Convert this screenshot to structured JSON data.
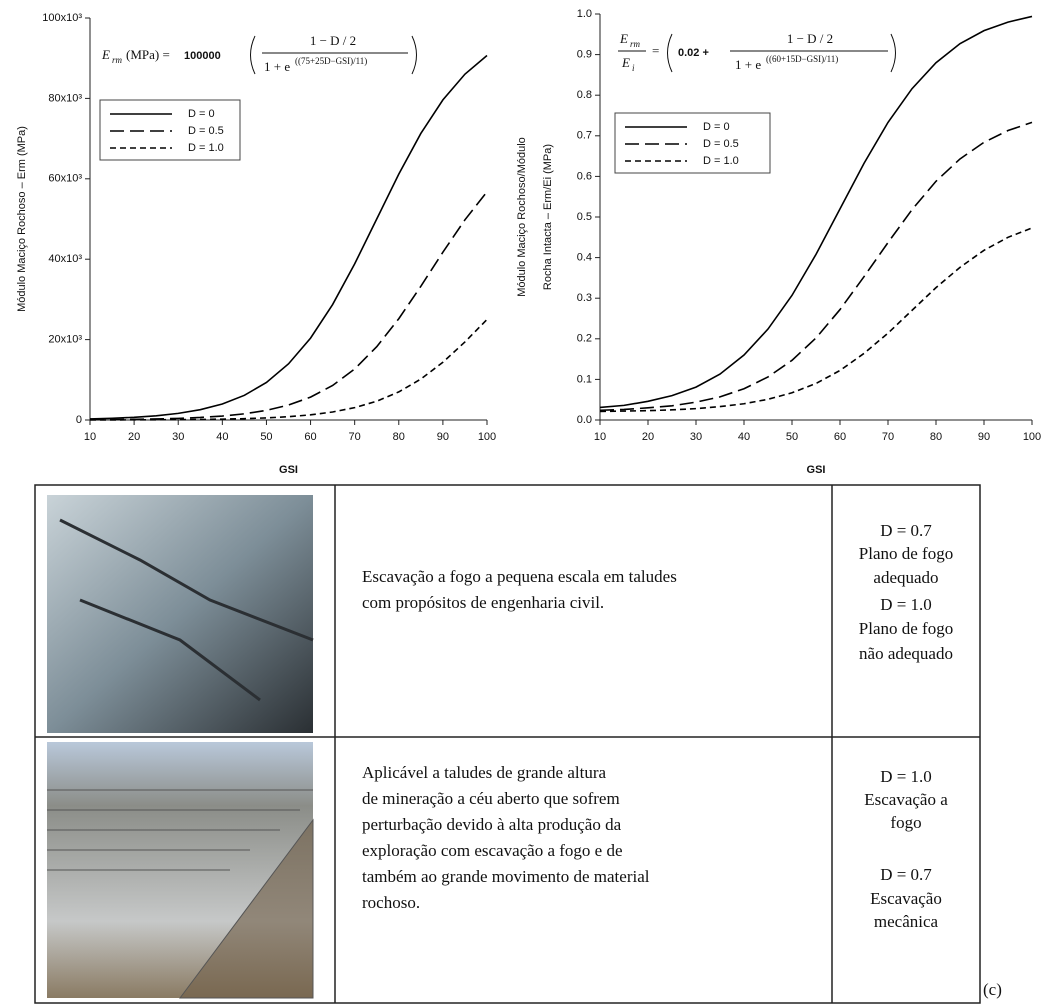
{
  "chart_data": [
    {
      "type": "line",
      "ylabel": [
        "Módulo Maciço Rochoso – Erm (MPa)"
      ],
      "xlabel": "GSI",
      "formula": {
        "lhs": "E",
        "lhs_sub": "rm",
        "lhs_rest": "(MPa) =",
        "coef": "100000",
        "numerator": "1 − D / 2",
        "denominator": "1 + e",
        "exponent": "((75+25D−GSI)/11)"
      },
      "x": [
        10,
        15,
        20,
        25,
        30,
        35,
        40,
        45,
        50,
        55,
        60,
        65,
        70,
        75,
        80,
        85,
        90,
        95,
        100
      ],
      "series": [
        {
          "name": "D = 0",
          "color": "#000000",
          "style": "solid",
          "values": [
            271,
            426,
            669,
            1050,
            1645,
            2566,
            3986,
            6140,
            9340,
            13970,
            20370,
            28720,
            38830,
            50000,
            61170,
            71280,
            79630,
            86030,
            90660
          ]
        },
        {
          "name": "D = 0.5",
          "color": "#000000",
          "style": "long-dash",
          "values": [
            65,
            103,
            162,
            255,
            401,
            629,
            987,
            1541,
            2401,
            3713,
            5690,
            8590,
            12690,
            18230,
            25190,
            33260,
            41740,
            49800,
            56770
          ]
        },
        {
          "name": "D = 1.0",
          "color": "#000000",
          "style": "dash",
          "values": [
            14,
            22,
            35,
            55,
            86,
            135,
            213,
            335,
            525,
            822,
            1283,
            1993,
            3070,
            4670,
            6985,
            10180,
            14360,
            19420,
            25000
          ]
        }
      ],
      "xlim": [
        10,
        100
      ],
      "xticks": [
        10,
        20,
        30,
        40,
        50,
        60,
        70,
        80,
        90,
        100
      ],
      "ylim": [
        0,
        100000
      ],
      "yticks": [
        0,
        {
          "value": 20000,
          "label": "20x10³"
        },
        {
          "value": 40000,
          "label": "40x10³"
        },
        {
          "value": 60000,
          "label": "60x10³"
        },
        {
          "value": 80000,
          "label": "80x10³"
        },
        {
          "value": 100000,
          "label": "100x10³"
        }
      ],
      "grid": false,
      "legend": "upper left"
    },
    {
      "type": "line",
      "ylabel": [
        "Módulo Maciço Rochoso/Módulo",
        "Rocha Intacta – Erm/Ei (MPa)"
      ],
      "xlabel": "GSI",
      "formula": {
        "lhs": "E",
        "lhs_sub": "rm",
        "den_lhs": "E",
        "den_sub": "i",
        "eq": "=",
        "const": "0.02 +",
        "numerator": "1 − D / 2",
        "denominator": "1 + e",
        "exponent": "((60+15D−GSI)/11)"
      },
      "x": [
        10,
        15,
        20,
        25,
        30,
        35,
        40,
        45,
        50,
        55,
        60,
        65,
        70,
        75,
        80,
        85,
        90,
        95,
        100
      ],
      "series": [
        {
          "name": "D = 0",
          "color": "#000000",
          "style": "solid",
          "values": [
            0.031,
            0.036,
            0.046,
            0.06,
            0.081,
            0.113,
            0.16,
            0.224,
            0.307,
            0.408,
            0.52,
            0.632,
            0.733,
            0.816,
            0.88,
            0.927,
            0.959,
            0.98,
            0.994
          ]
        },
        {
          "name": "D = 0.5",
          "color": "#000000",
          "style": "long-dash",
          "values": [
            0.024,
            0.026,
            0.03,
            0.035,
            0.044,
            0.057,
            0.077,
            0.106,
            0.147,
            0.202,
            0.272,
            0.353,
            0.437,
            0.518,
            0.588,
            0.643,
            0.684,
            0.713,
            0.733
          ]
        },
        {
          "name": "D = 1.0",
          "color": "#000000",
          "style": "dash",
          "values": [
            0.021,
            0.022,
            0.023,
            0.025,
            0.028,
            0.033,
            0.04,
            0.051,
            0.067,
            0.09,
            0.122,
            0.164,
            0.214,
            0.27,
            0.326,
            0.376,
            0.418,
            0.45,
            0.473
          ]
        }
      ],
      "xlim": [
        10,
        100
      ],
      "xticks": [
        10,
        20,
        30,
        40,
        50,
        60,
        70,
        80,
        90,
        100
      ],
      "ylim": [
        0,
        1
      ],
      "yticks": [
        {
          "value": 0,
          "label": "0.0"
        },
        0.1,
        0.2,
        0.3,
        0.4,
        0.5,
        0.6,
        0.7,
        0.8,
        0.9,
        {
          "value": 1,
          "label": "1.0"
        }
      ],
      "grid": false,
      "legend": "upper left"
    }
  ],
  "table": {
    "rows": [
      {
        "description": [
          "Escavação a fogo a pequena escala em taludes",
          "com propósitos de engenharia civil."
        ],
        "d_notes": [
          "D = 0.7",
          "Plano de fogo",
          "adequado",
          "D = 1.0",
          "Plano de fogo",
          "não adequado"
        ]
      },
      {
        "description": [
          "Aplicável a taludes de grande altura",
          "de mineração a céu aberto que sofrem",
          "perturbação devido à alta produção da",
          "exploração com escavação a fogo e de",
          "também ao grande movimento de material",
          "rochoso."
        ],
        "d_notes": [
          "D = 1.0",
          "Escavação a",
          "fogo",
          "D = 0.7",
          "Escavação",
          "mecânica"
        ]
      }
    ]
  },
  "label": "(c)"
}
